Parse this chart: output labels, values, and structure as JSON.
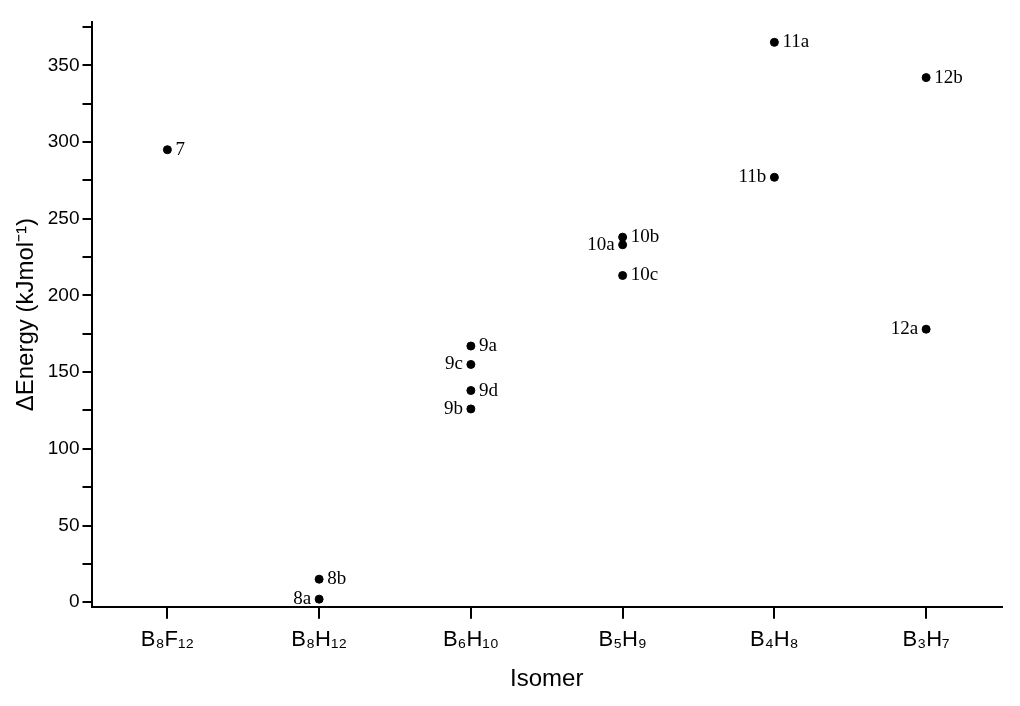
{
  "chart_data": {
    "type": "scatter",
    "xlabel": "Isomer",
    "ylabel": "ΔEnergy (kJmol⁻¹)",
    "categories": [
      "B₈F₁₂",
      "B₈H₁₂",
      "B₆H₁₀",
      "B₅H₉",
      "B₄H₈",
      "B₃H₇"
    ],
    "series": [
      {
        "color": "#000000",
        "x": [
          "B₈F₁₂",
          "B₈H₁₂",
          "B₈H₁₂",
          "B₆H₁₀",
          "B₆H₁₀",
          "B₆H₁₀",
          "B₆H₁₀",
          "B₅H₉",
          "B₅H₉",
          "B₅H₉",
          "B₄H₈",
          "B₄H₈",
          "B₃H₇",
          "B₃H₇"
        ],
        "values": [
          295,
          2,
          15,
          167,
          155,
          138,
          126,
          238,
          233,
          213,
          365,
          277,
          342,
          178
        ]
      }
    ],
    "marker": "circle",
    "grid": false,
    "legend": false,
    "ylim": [
      -3,
      378
    ],
    "yticks": [
      0,
      {
        "value": 25,
        "label": null
      },
      50,
      {
        "value": 75,
        "label": null
      },
      100,
      {
        "value": 125,
        "label": null
      },
      150,
      {
        "value": 175,
        "label": null
      },
      200,
      {
        "value": 225,
        "label": null
      },
      250,
      {
        "value": 275,
        "label": null
      },
      300,
      {
        "value": 325,
        "label": null
      },
      350,
      {
        "value": 375,
        "label": null
      }
    ],
    "annotations": [
      {
        "text": "7",
        "x": "B₈F₁₂",
        "y": 295
      },
      {
        "text": "8a",
        "x": "B₈H₁₂",
        "y": 2
      },
      {
        "text": "8b",
        "x": "B₈H₁₂",
        "y": 15
      },
      {
        "text": "9a",
        "x": "B₆H₁₀",
        "y": 167
      },
      {
        "text": "9c",
        "x": "B₆H₁₀",
        "y": 155
      },
      {
        "text": "9d",
        "x": "B₆H₁₀",
        "y": 138
      },
      {
        "text": "9b",
        "x": "B₆H₁₀",
        "y": 126
      },
      {
        "text": "10b",
        "x": "B₅H₉",
        "y": 238
      },
      {
        "text": "10a",
        "x": "B₅H₉",
        "y": 233
      },
      {
        "text": "10c",
        "x": "B₅H₉",
        "y": 213
      },
      {
        "text": "11a",
        "x": "B₄H₈",
        "y": 365
      },
      {
        "text": "11b",
        "x": "B₄H₈",
        "y": 277
      },
      {
        "text": "12b",
        "x": "B₃H₇",
        "y": 342
      },
      {
        "text": "12a",
        "x": "B₃H₇",
        "y": 178
      }
    ]
  }
}
